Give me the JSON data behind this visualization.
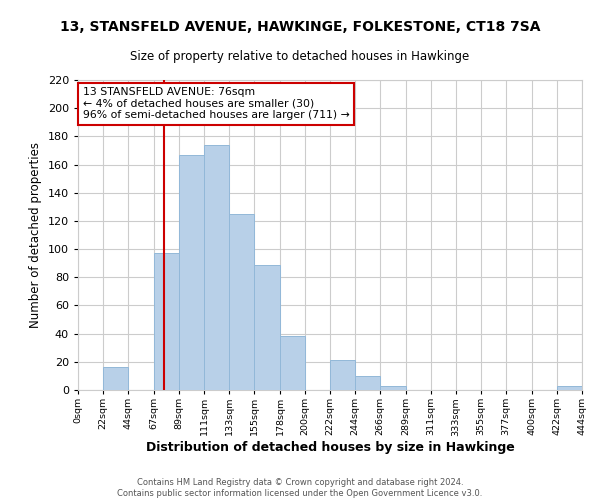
{
  "title": "13, STANSFELD AVENUE, HAWKINGE, FOLKESTONE, CT18 7SA",
  "subtitle": "Size of property relative to detached houses in Hawkinge",
  "xlabel": "Distribution of detached houses by size in Hawkinge",
  "ylabel": "Number of detached properties",
  "bar_color": "#b8d0e8",
  "bar_edge_color": "#92b8d8",
  "tick_labels": [
    "0sqm",
    "22sqm",
    "44sqm",
    "67sqm",
    "89sqm",
    "111sqm",
    "133sqm",
    "155sqm",
    "178sqm",
    "200sqm",
    "222sqm",
    "244sqm",
    "266sqm",
    "289sqm",
    "311sqm",
    "333sqm",
    "355sqm",
    "377sqm",
    "400sqm",
    "422sqm",
    "444sqm"
  ],
  "bar_heights": [
    0,
    16,
    0,
    97,
    167,
    174,
    125,
    89,
    38,
    0,
    21,
    10,
    3,
    0,
    0,
    0,
    0,
    0,
    0,
    3,
    0
  ],
  "bin_edges": [
    0,
    22,
    44,
    67,
    89,
    111,
    133,
    155,
    178,
    200,
    222,
    244,
    266,
    289,
    311,
    333,
    355,
    377,
    400,
    422,
    444
  ],
  "ylim": [
    0,
    220
  ],
  "yticks": [
    0,
    20,
    40,
    60,
    80,
    100,
    120,
    140,
    160,
    180,
    200,
    220
  ],
  "vline_x": 76,
  "vline_color": "#cc0000",
  "annotation_lines": [
    "13 STANSFELD AVENUE: 76sqm",
    "← 4% of detached houses are smaller (30)",
    "96% of semi-detached houses are larger (711) →"
  ],
  "annotation_box_color": "#ffffff",
  "annotation_box_edge": "#cc0000",
  "footer_lines": [
    "Contains HM Land Registry data © Crown copyright and database right 2024.",
    "Contains public sector information licensed under the Open Government Licence v3.0."
  ],
  "background_color": "#ffffff",
  "grid_color": "#cccccc"
}
